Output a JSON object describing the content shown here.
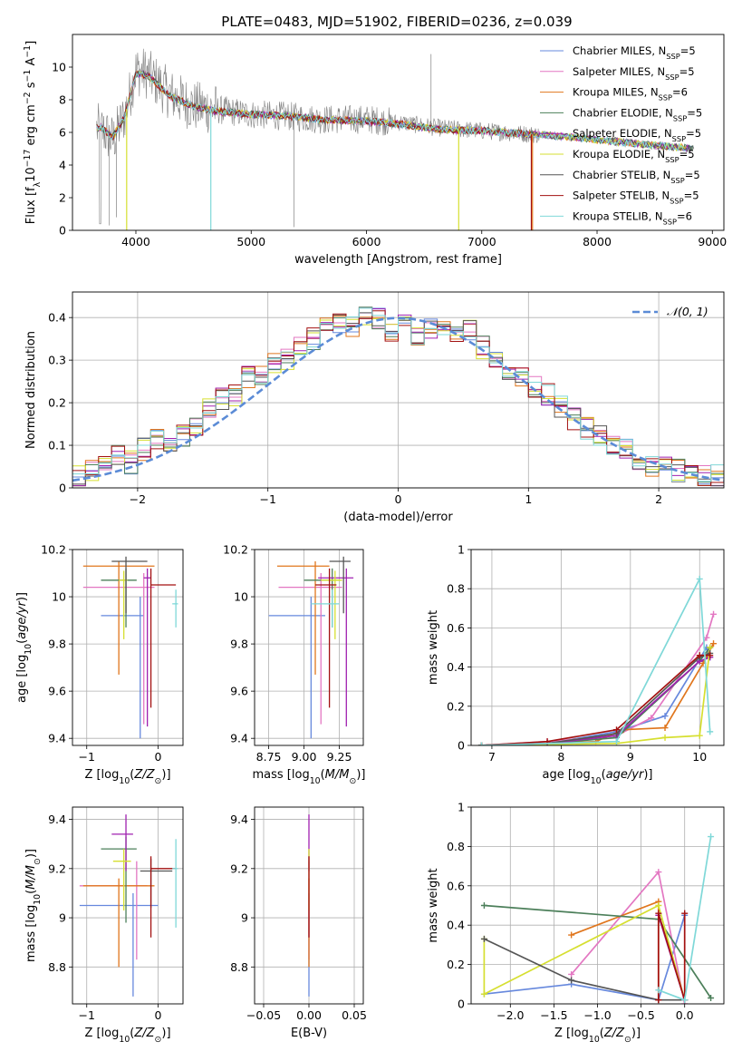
{
  "title": "PLATE=0483, MJD=51902, FIBERID=0236, z=0.039",
  "colors": {
    "chabrier_miles": "#6688dd",
    "salpeter_miles": "#e377c2",
    "kroupa_miles": "#e0761d",
    "chabrier_elodie": "#4c7f5a",
    "salpeter_elodie": "#a020b0",
    "kroupa_elodie": "#d6df30",
    "chabrier_stelib": "#555555",
    "salpeter_stelib": "#a31111",
    "kroupa_stelib": "#7fd8d8",
    "gauss": "#5b8bd6",
    "grid": "#b0b0b0"
  },
  "legend_entries": [
    {
      "prefix": "Chabrier MILES, N",
      "sub": "SSP",
      "suffix": "=5",
      "color_key": "chabrier_miles"
    },
    {
      "prefix": "Salpeter MILES, N",
      "sub": "SSP",
      "suffix": "=5",
      "color_key": "salpeter_miles"
    },
    {
      "prefix": "Kroupa MILES, N",
      "sub": "SSP",
      "suffix": "=6",
      "color_key": "kroupa_miles"
    },
    {
      "prefix": "Chabrier ELODIE, N",
      "sub": "SSP",
      "suffix": "=5",
      "color_key": "chabrier_elodie"
    },
    {
      "prefix": "Salpeter ELODIE, N",
      "sub": "SSP",
      "suffix": "=5",
      "color_key": "salpeter_elodie"
    },
    {
      "prefix": "Kroupa ELODIE, N",
      "sub": "SSP",
      "suffix": "=5",
      "color_key": "kroupa_elodie"
    },
    {
      "prefix": "Chabrier STELIB, N",
      "sub": "SSP",
      "suffix": "=5",
      "color_key": "chabrier_stelib"
    },
    {
      "prefix": "Salpeter STELIB, N",
      "sub": "SSP",
      "suffix": "=5",
      "color_key": "salpeter_stelib"
    },
    {
      "prefix": "Kroupa STELIB, N",
      "sub": "SSP",
      "suffix": "=6",
      "color_key": "kroupa_stelib"
    }
  ],
  "gauss_legend": "𝒩(0, 1)",
  "chart_data": [
    {
      "id": "spectrum",
      "type": "line",
      "xlabel": "wavelength [Angstrom, rest frame]",
      "ylabel": "Flux [f_λ10^-17 erg cm^-2 s^-1 A^-1]",
      "xlim": [
        3450,
        9100
      ],
      "ylim": [
        0,
        12
      ],
      "xticks": [
        4000,
        5000,
        6000,
        7000,
        8000,
        9000
      ],
      "yticks": [
        0,
        2,
        4,
        6,
        8,
        10
      ],
      "x": [
        3700,
        3800,
        3900,
        4000,
        4100,
        4300,
        4500,
        4700,
        5000,
        5300,
        5600,
        6000,
        6300,
        6600,
        7000,
        7400,
        7800,
        8200,
        8500,
        8840
      ],
      "data_y": [
        6.2,
        5.5,
        7.0,
        9.8,
        9.6,
        8.3,
        7.6,
        7.4,
        7.1,
        7.0,
        6.8,
        6.8,
        6.6,
        6.3,
        6.1,
        5.9,
        5.7,
        5.5,
        5.2,
        5.0
      ],
      "model_y": [
        6.3,
        5.7,
        6.9,
        9.6,
        9.5,
        8.2,
        7.6,
        7.3,
        7.1,
        7.0,
        6.8,
        6.7,
        6.5,
        6.2,
        6.1,
        5.9,
        5.7,
        5.4,
        5.2,
        5.0
      ],
      "data_xmax": 8840,
      "salpeter_stelib_end": 7430,
      "model_dips": [
        {
          "x": 3920,
          "color_key": "kroupa_elodie"
        },
        {
          "x": 4650,
          "color_key": "kroupa_stelib"
        },
        {
          "x": 6800,
          "color_key": "kroupa_elodie"
        },
        {
          "x": 7430,
          "color_key": "salpeter_stelib"
        },
        {
          "x": 7440,
          "color_key": "kroupa_miles"
        }
      ]
    },
    {
      "id": "residuals",
      "type": "area",
      "xlabel": "(data-model)/error",
      "ylabel": "Normed distribution",
      "xlim": [
        -2.5,
        2.5
      ],
      "ylim": [
        0,
        0.46
      ],
      "xticks": [
        -2,
        -1,
        0,
        1,
        2
      ],
      "yticks": [
        0.0,
        0.1,
        0.2,
        0.3,
        0.4
      ],
      "bin_width": 0.1,
      "gaussian": {
        "mu": 0,
        "sigma": 1
      },
      "histogram_shape": [
        0.025,
        0.04,
        0.06,
        0.08,
        0.06,
        0.09,
        0.11,
        0.1,
        0.12,
        0.15,
        0.19,
        0.21,
        0.22,
        0.26,
        0.27,
        0.29,
        0.3,
        0.33,
        0.35,
        0.38,
        0.39,
        0.38,
        0.4,
        0.4,
        0.37,
        0.39,
        0.36,
        0.37,
        0.38,
        0.36,
        0.37,
        0.33,
        0.31,
        0.28,
        0.26,
        0.24,
        0.22,
        0.19,
        0.16,
        0.14,
        0.12,
        0.1,
        0.09,
        0.07,
        0.05,
        0.05,
        0.04,
        0.03,
        0.03,
        0.03
      ]
    },
    {
      "id": "age_vs_Z",
      "type": "scatter",
      "xlabel": "Z [log10(Z/Z⊙)]",
      "ylabel": "age [log10(age/yr)]",
      "xlim": [
        -1.2,
        0.35
      ],
      "ylim": [
        9.37,
        10.2
      ],
      "xticks": [
        -1,
        0
      ],
      "yticks": [
        9.4,
        9.6,
        9.8,
        10.0,
        10.2
      ],
      "points": [
        {
          "color_key": "chabrier_miles",
          "x": -0.25,
          "xerr": [
            0.55,
            0.05
          ],
          "y": 9.92,
          "yerr": [
            0.52,
            0.08
          ]
        },
        {
          "color_key": "salpeter_miles",
          "x": -0.2,
          "xerr": [
            0.85,
            0.15
          ],
          "y": 10.04,
          "yerr": [
            0.58,
            0.06
          ]
        },
        {
          "color_key": "kroupa_miles",
          "x": -0.55,
          "xerr": [
            0.5,
            0.5
          ],
          "y": 10.13,
          "yerr": [
            0.46,
            0.02
          ]
        },
        {
          "color_key": "chabrier_elodie",
          "x": -0.45,
          "xerr": [
            0.35,
            0.15
          ],
          "y": 10.07,
          "yerr": [
            0.2,
            0.05
          ]
        },
        {
          "color_key": "salpeter_elodie",
          "x": -0.15,
          "xerr": [
            0.05,
            0.05
          ],
          "y": 10.08,
          "yerr": [
            0.63,
            0.04
          ]
        },
        {
          "color_key": "kroupa_elodie",
          "x": -0.48,
          "xerr": [
            0.07,
            0.05
          ],
          "y": 10.07,
          "yerr": [
            0.25,
            0.04
          ]
        },
        {
          "color_key": "chabrier_stelib",
          "x": -0.45,
          "xerr": [
            0.2,
            0.3
          ],
          "y": 10.15,
          "yerr": [
            0.22,
            0.02
          ]
        },
        {
          "color_key": "salpeter_stelib",
          "x": -0.1,
          "xerr": [
            0.0,
            0.35
          ],
          "y": 10.05,
          "yerr": [
            0.52,
            0.07
          ]
        },
        {
          "color_key": "kroupa_stelib",
          "x": 0.25,
          "xerr": [
            0.05,
            0.03
          ],
          "y": 9.97,
          "yerr": [
            0.1,
            0.06
          ]
        }
      ]
    },
    {
      "id": "age_vs_mass",
      "type": "scatter",
      "xlabel": "mass [log10(M/M⊙)]",
      "ylabel": "",
      "xlim": [
        8.65,
        9.42
      ],
      "ylim": [
        9.37,
        10.2
      ],
      "xticks": [
        8.75,
        9.0,
        9.25
      ],
      "yticks": [
        9.4,
        9.6,
        9.8,
        10.0,
        10.2
      ],
      "points": [
        {
          "color_key": "chabrier_miles",
          "x": 9.05,
          "xerr": [
            0.3,
            0.1
          ],
          "y": 9.92,
          "yerr": [
            0.52,
            0.08
          ]
        },
        {
          "color_key": "salpeter_miles",
          "x": 9.12,
          "xerr": [
            0.3,
            0.15
          ],
          "y": 10.04,
          "yerr": [
            0.58,
            0.06
          ]
        },
        {
          "color_key": "kroupa_miles",
          "x": 9.08,
          "xerr": [
            0.27,
            0.1
          ],
          "y": 10.13,
          "yerr": [
            0.46,
            0.02
          ]
        },
        {
          "color_key": "chabrier_elodie",
          "x": 9.2,
          "xerr": [
            0.2,
            0.05
          ],
          "y": 10.07,
          "yerr": [
            0.2,
            0.05
          ]
        },
        {
          "color_key": "salpeter_elodie",
          "x": 9.3,
          "xerr": [
            0.2,
            0.05
          ],
          "y": 10.08,
          "yerr": [
            0.63,
            0.04
          ]
        },
        {
          "color_key": "kroupa_elodie",
          "x": 9.22,
          "xerr": [
            0.1,
            0.05
          ],
          "y": 10.07,
          "yerr": [
            0.25,
            0.04
          ]
        },
        {
          "color_key": "chabrier_stelib",
          "x": 9.28,
          "xerr": [
            0.1,
            0.05
          ],
          "y": 10.15,
          "yerr": [
            0.22,
            0.02
          ]
        },
        {
          "color_key": "salpeter_stelib",
          "x": 9.18,
          "xerr": [
            0.1,
            0.05
          ],
          "y": 10.05,
          "yerr": [
            0.52,
            0.07
          ]
        },
        {
          "color_key": "kroupa_stelib",
          "x": 9.2,
          "xerr": [
            0.15,
            0.05
          ],
          "y": 9.97,
          "yerr": [
            0.1,
            0.06
          ]
        }
      ]
    },
    {
      "id": "mass_weight_vs_age",
      "type": "line",
      "xlabel": "age [log10(age/yr)]",
      "ylabel": "mass weight",
      "xlim": [
        6.7,
        10.35
      ],
      "ylim": [
        0,
        1
      ],
      "xticks": [
        7,
        8,
        9,
        10
      ],
      "yticks": [
        0.0,
        0.2,
        0.4,
        0.6,
        0.8,
        1.0
      ],
      "series": [
        {
          "color_key": "chabrier_miles",
          "x": [
            6.85,
            7.8,
            8.8,
            9.5,
            10.1,
            10.15
          ],
          "y": [
            0.0,
            0.01,
            0.07,
            0.15,
            0.5,
            0.45
          ]
        },
        {
          "color_key": "salpeter_miles",
          "x": [
            6.85,
            7.8,
            8.8,
            9.3,
            10.1,
            10.2
          ],
          "y": [
            0.0,
            0.02,
            0.05,
            0.14,
            0.55,
            0.67
          ]
        },
        {
          "color_key": "kroupa_miles",
          "x": [
            6.85,
            8.5,
            8.9,
            9.5,
            10.05,
            10.2
          ],
          "y": [
            0.0,
            0.02,
            0.08,
            0.09,
            0.42,
            0.52
          ]
        },
        {
          "color_key": "chabrier_elodie",
          "x": [
            6.85,
            7.8,
            8.8,
            10.0,
            10.15
          ],
          "y": [
            0.0,
            0.01,
            0.04,
            0.43,
            0.5
          ]
        },
        {
          "color_key": "salpeter_elodie",
          "x": [
            6.85,
            7.8,
            8.8,
            10.0,
            10.15
          ],
          "y": [
            0.0,
            0.01,
            0.05,
            0.43,
            0.45
          ]
        },
        {
          "color_key": "kroupa_elodie",
          "x": [
            6.85,
            8.8,
            9.5,
            10.0,
            10.15
          ],
          "y": [
            0.0,
            0.01,
            0.04,
            0.05,
            0.5
          ]
        },
        {
          "color_key": "chabrier_stelib",
          "x": [
            6.85,
            7.8,
            8.8,
            10.0,
            10.15
          ],
          "y": [
            0.0,
            0.01,
            0.06,
            0.45,
            0.47
          ]
        },
        {
          "color_key": "salpeter_stelib",
          "x": [
            6.85,
            7.8,
            8.8,
            10.0,
            10.15
          ],
          "y": [
            0.0,
            0.02,
            0.08,
            0.46,
            0.46
          ]
        },
        {
          "color_key": "kroupa_stelib",
          "x": [
            6.85,
            8.8,
            10.0,
            10.15
          ],
          "y": [
            0.0,
            0.02,
            0.85,
            0.07
          ]
        }
      ]
    },
    {
      "id": "mass_vs_Z",
      "type": "scatter",
      "xlabel": "Z [log10(Z/Z⊙)]",
      "ylabel": "mass [log10(M/M⊙)]",
      "xlim": [
        -1.2,
        0.35
      ],
      "ylim": [
        8.65,
        9.45
      ],
      "xticks": [
        -1,
        0
      ],
      "yticks": [
        8.8,
        9.0,
        9.2,
        9.4
      ],
      "points": [
        {
          "color_key": "chabrier_miles",
          "x": -0.35,
          "xerr": [
            0.75,
            0.35
          ],
          "y": 9.05,
          "yerr": [
            0.37,
            0.05
          ]
        },
        {
          "color_key": "salpeter_miles",
          "x": -0.3,
          "xerr": [
            0.8,
            0.15
          ],
          "y": 9.13,
          "yerr": [
            0.3,
            0.1
          ]
        },
        {
          "color_key": "kroupa_miles",
          "x": -0.55,
          "xerr": [
            0.5,
            0.5
          ],
          "y": 9.13,
          "yerr": [
            0.33,
            0.03
          ]
        },
        {
          "color_key": "chabrier_elodie",
          "x": -0.45,
          "xerr": [
            0.35,
            0.15
          ],
          "y": 9.28,
          "yerr": [
            0.3,
            0.05
          ]
        },
        {
          "color_key": "salpeter_elodie",
          "x": -0.45,
          "xerr": [
            0.2,
            0.1
          ],
          "y": 9.34,
          "yerr": [
            0.15,
            0.08
          ]
        },
        {
          "color_key": "kroupa_elodie",
          "x": -0.48,
          "xerr": [
            0.15,
            0.1
          ],
          "y": 9.23,
          "yerr": [
            0.2,
            0.05
          ]
        },
        {
          "color_key": "chabrier_stelib",
          "x": -0.1,
          "xerr": [
            0.15,
            0.3
          ],
          "y": 9.19,
          "yerr": [
            0.15,
            0.05
          ]
        },
        {
          "color_key": "salpeter_stelib",
          "x": -0.1,
          "xerr": [
            0.0,
            0.35
          ],
          "y": 9.2,
          "yerr": [
            0.28,
            0.05
          ]
        },
        {
          "color_key": "kroupa_stelib",
          "x": 0.25,
          "xerr": [
            0.05,
            0.03
          ],
          "y": 9.2,
          "yerr": [
            0.24,
            0.12
          ]
        }
      ]
    },
    {
      "id": "mass_vs_ebv",
      "type": "scatter",
      "xlabel": "E(B-V)",
      "ylabel": "",
      "xlim": [
        -0.06,
        0.06
      ],
      "ylim": [
        8.65,
        9.45
      ],
      "xticks": [
        -0.05,
        0.0,
        0.05
      ],
      "yticks": [
        8.8,
        9.0,
        9.2,
        9.4
      ],
      "points": [
        {
          "color_key": "chabrier_miles",
          "x": 0.0,
          "xerr": [
            0,
            0
          ],
          "y": 9.05,
          "yerr": [
            0.37,
            0.05
          ]
        },
        {
          "color_key": "salpeter_miles",
          "x": 0.0,
          "xerr": [
            0,
            0
          ],
          "y": 9.13,
          "yerr": [
            0.3,
            0.1
          ]
        },
        {
          "color_key": "kroupa_miles",
          "x": 0.0,
          "xerr": [
            0,
            0
          ],
          "y": 9.13,
          "yerr": [
            0.33,
            0.03
          ]
        },
        {
          "color_key": "salpeter_elodie",
          "x": 0.0,
          "xerr": [
            0,
            0
          ],
          "y": 9.34,
          "yerr": [
            0.15,
            0.08
          ]
        },
        {
          "color_key": "kroupa_elodie",
          "x": 0.0,
          "xerr": [
            0,
            0
          ],
          "y": 9.23,
          "yerr": [
            0.2,
            0.05
          ]
        },
        {
          "color_key": "salpeter_stelib",
          "x": 0.0,
          "xerr": [
            0,
            0
          ],
          "y": 9.2,
          "yerr": [
            0.28,
            0.05
          ]
        }
      ]
    },
    {
      "id": "mass_weight_vs_Z",
      "type": "line",
      "xlabel": "Z [log10(Z/Z⊙)]",
      "ylabel": "mass weight",
      "xlim": [
        -2.45,
        0.45
      ],
      "ylim": [
        0,
        1
      ],
      "xticks": [
        -2.0,
        -1.5,
        -1.0,
        -0.5,
        0.0
      ],
      "yticks": [
        0.0,
        0.2,
        0.4,
        0.6,
        0.8,
        1.0
      ],
      "series": [
        {
          "color_key": "chabrier_miles",
          "x": [
            -2.3,
            -1.3,
            -0.3,
            0.0
          ],
          "y": [
            0.05,
            0.1,
            0.02,
            0.45
          ]
        },
        {
          "color_key": "salpeter_miles",
          "x": [
            -1.3,
            -0.3,
            0.0
          ],
          "y": [
            0.15,
            0.67,
            0.0
          ]
        },
        {
          "color_key": "kroupa_miles",
          "x": [
            -1.3,
            -0.3,
            -0.3
          ],
          "y": [
            0.35,
            0.52,
            0.02
          ]
        },
        {
          "color_key": "chabrier_elodie",
          "x": [
            -2.3,
            -0.3,
            0.3
          ],
          "y": [
            0.5,
            0.43,
            0.03
          ]
        },
        {
          "color_key": "salpeter_elodie",
          "x": [
            -0.3,
            0.0
          ],
          "y": [
            0.45,
            0.02
          ]
        },
        {
          "color_key": "kroupa_elodie",
          "x": [
            -2.3,
            -2.3,
            -0.3,
            0.0
          ],
          "y": [
            0.33,
            0.05,
            0.5,
            0.02
          ]
        },
        {
          "color_key": "chabrier_stelib",
          "x": [
            -2.3,
            -1.3,
            -0.3,
            0.0
          ],
          "y": [
            0.33,
            0.12,
            0.02,
            0.02
          ]
        },
        {
          "color_key": "salpeter_stelib",
          "x": [
            -0.3,
            -0.3,
            0.0,
            0.0
          ],
          "y": [
            0.02,
            0.46,
            0.02,
            0.46
          ]
        },
        {
          "color_key": "kroupa_stelib",
          "x": [
            -0.3,
            0.0,
            0.3
          ],
          "y": [
            0.07,
            0.02,
            0.85
          ]
        }
      ]
    }
  ]
}
